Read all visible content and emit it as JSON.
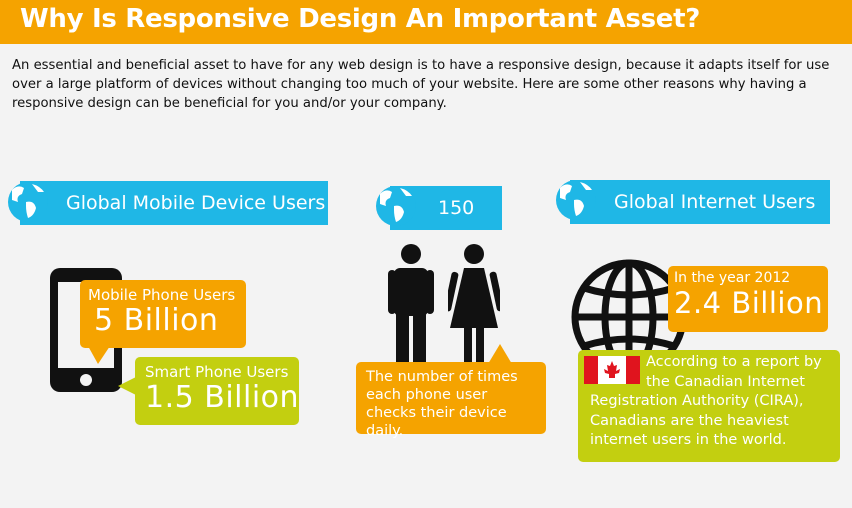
{
  "header": {
    "title": "Why Is Responsive Design An Important Asset?"
  },
  "intro": {
    "text": "An essential and beneficial asset to have for any web design is to have a responsive design, because it adapts itself for use over a large platform of devices without changing too much of your website. Here are some other reasons why having a responsive design can be beneficial for you and/or your company."
  },
  "mobile_section": {
    "banner": "Global Mobile Device Users",
    "mobile_label": "Mobile Phone Users",
    "mobile_value": "5 Billion",
    "smart_label": "Smart Phone Users",
    "smart_value": "1.5 Billion"
  },
  "checks_section": {
    "banner": "150",
    "caption": "The number of times each phone user checks their device daily."
  },
  "internet_section": {
    "banner": "Global Internet Users",
    "year_label": "In the year 2012",
    "year_value": "2.4 Billion",
    "report": "According to a report by the Canadian Internet Registration Authority (CIRA), Canadians are the heaviest internet users in the world."
  },
  "colors": {
    "orange": "#f5a300",
    "blue": "#1fb7e6",
    "green": "#c3cf10",
    "dark": "#111111",
    "canada_red": "#e0141e"
  },
  "icons": [
    "globe-icon",
    "smartphone-icon",
    "man-icon",
    "woman-icon",
    "world-globe-icon",
    "canada-flag-icon"
  ]
}
